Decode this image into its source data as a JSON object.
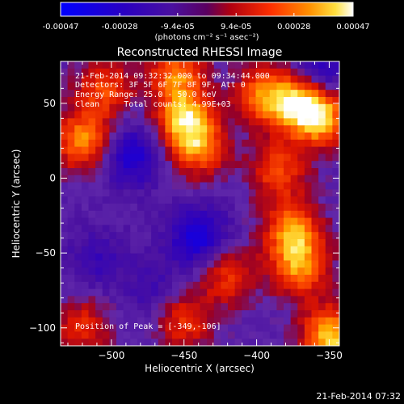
{
  "colorbar": {
    "tick_labels": [
      "-0.00047",
      "-0.00028",
      "-9.4e-05",
      "9.4e-05",
      "0.00028",
      "0.00047"
    ],
    "tick_values": [
      -0.00047,
      -0.00028,
      -9.4e-05,
      9.4e-05,
      0.00028,
      0.00047
    ],
    "min": -0.00047,
    "max": 0.00047,
    "units_label": "(photons cm⁻² s⁻¹ asec⁻²)"
  },
  "chart_data": {
    "type": "heatmap",
    "title": "Reconstructed RHESSI Image",
    "xlabel": "Heliocentric X (arcsec)",
    "ylabel": "Heliocentric Y (arcsec)",
    "xlim": [
      -535,
      -343
    ],
    "ylim": [
      -112,
      78
    ],
    "xticks": [
      -500,
      -450,
      -400,
      -350
    ],
    "yticks": [
      -100,
      -50,
      0,
      50
    ],
    "xtick_labels": [
      "−500",
      "−450",
      "−400",
      "−350"
    ],
    "ytick_labels": [
      "−100",
      "−50",
      "0",
      "50"
    ],
    "info_lines": [
      "21-Feb-2014 09:32:32.000 to 09:34:44.000",
      "Detectors: 3F 5F 6F 7F 8F 9F, Att 0",
      "Energy Range: 25.0 - 50.0 keV",
      "Clean     Total counts: 4.99E+03"
    ],
    "peak_label": "Position of Peak = [-349,-106]",
    "peak": [
      -349,
      -106
    ],
    "colormap": "blue-purple-red-yellow-white",
    "features": [
      {
        "kind": "bright",
        "x": -520,
        "y": 25,
        "strength": 0.8
      },
      {
        "kind": "bright",
        "x": -505,
        "y": 60,
        "strength": 0.6
      },
      {
        "kind": "bright",
        "x": -455,
        "y": 70,
        "strength": 0.7
      },
      {
        "kind": "bright",
        "x": -450,
        "y": 40,
        "strength": 0.85
      },
      {
        "kind": "bright",
        "x": -440,
        "y": 20,
        "strength": 0.7
      },
      {
        "kind": "bright",
        "x": -395,
        "y": 55,
        "strength": 0.75
      },
      {
        "kind": "bright",
        "x": -370,
        "y": 50,
        "strength": 0.85
      },
      {
        "kind": "bright",
        "x": -355,
        "y": 40,
        "strength": 0.8
      },
      {
        "kind": "bright",
        "x": -385,
        "y": 5,
        "strength": 0.6
      },
      {
        "kind": "bright",
        "x": -375,
        "y": -35,
        "strength": 0.8
      },
      {
        "kind": "bright",
        "x": -370,
        "y": -60,
        "strength": 0.75
      },
      {
        "kind": "bright",
        "x": -420,
        "y": -65,
        "strength": 0.55
      },
      {
        "kind": "bright",
        "x": -450,
        "y": -95,
        "strength": 0.55
      },
      {
        "kind": "bright",
        "x": -520,
        "y": -100,
        "strength": 0.5
      },
      {
        "kind": "bright",
        "x": -349,
        "y": -106,
        "strength": 1.0
      },
      {
        "kind": "dark",
        "x": -485,
        "y": 15,
        "strength": 0.8
      },
      {
        "kind": "dark",
        "x": -440,
        "y": -40,
        "strength": 0.9
      },
      {
        "kind": "dark",
        "x": -355,
        "y": 72,
        "strength": 0.7
      },
      {
        "kind": "dark",
        "x": -510,
        "y": -55,
        "strength": 0.4
      },
      {
        "kind": "dark",
        "x": -470,
        "y": -75,
        "strength": 0.35
      }
    ]
  },
  "footer": {
    "timestamp": "21-Feb-2014 07:32"
  },
  "colors": {
    "background": "#000000",
    "text": "#ffffff",
    "colormap_stops": [
      "#0000ff",
      "#4a0a9e",
      "#6a2aa8",
      "#b0001a",
      "#ff2000",
      "#ff8000",
      "#ffd020",
      "#ffffff"
    ]
  }
}
